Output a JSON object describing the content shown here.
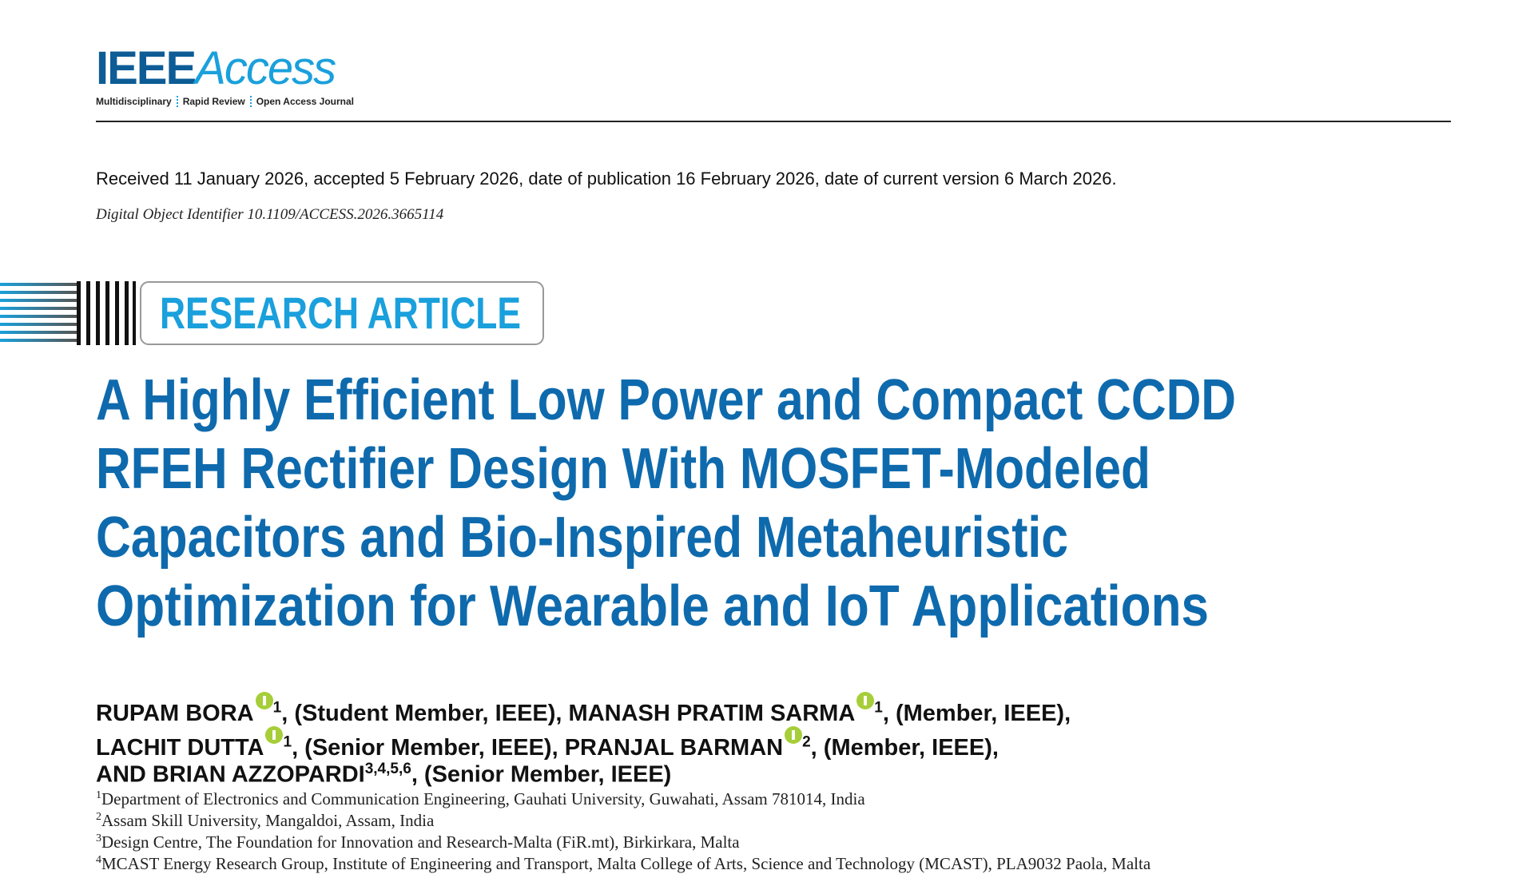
{
  "header": {
    "logo_main": "IEEE",
    "logo_access": "Access",
    "tagline": [
      "Multidisciplinary",
      "Rapid Review",
      "Open Access Journal"
    ]
  },
  "dates": "Received 11 January 2026, accepted 5 February 2026, date of publication 16 February 2026, date of current version 6 March 2026.",
  "doi": "Digital Object Identifier 10.1109/ACCESS.2026.3665114",
  "label": "RESEARCH ARTICLE",
  "title": [
    "A Highly Efficient Low Power and Compact CCDD",
    "RFEH Rectifier Design With MOSFET-Modeled",
    "Capacitors and Bio-Inspired Metaheuristic",
    "Optimization for Wearable and IoT Applications"
  ],
  "authors": [
    [
      {
        "name": "RUPAM BORA",
        "orcid": true,
        "aff": "1",
        "role": ", (Student Member, IEEE),"
      },
      {
        "name": "MANASH PRATIM SARMA",
        "orcid": true,
        "aff": "1",
        "role": ", (Member, IEEE),"
      }
    ],
    [
      {
        "name": "LACHIT DUTTA",
        "orcid": true,
        "aff": "1",
        "role": ", (Senior Member, IEEE),"
      },
      {
        "name": "PRANJAL BARMAN",
        "orcid": true,
        "aff": "2",
        "role": ", (Member, IEEE),"
      }
    ],
    [
      {
        "name": "AND BRIAN AZZOPARDI",
        "orcid": false,
        "aff": "3,4,5,6",
        "role": ", (Senior Member, IEEE)"
      }
    ]
  ],
  "affiliations": [
    {
      "num": "1",
      "text": "Department of Electronics and Communication Engineering, Gauhati University, Guwahati, Assam 781014, India"
    },
    {
      "num": "2",
      "text": "Assam Skill University, Mangaldoi, Assam, India"
    },
    {
      "num": "3",
      "text": "Design Centre, The Foundation for Innovation and Research-Malta (FiR.mt), Birkirkara, Malta"
    },
    {
      "num": "4",
      "text": "MCAST Energy Research Group, Institute of Engineering and Transport, Malta College of Arts, Science and Technology (MCAST), PLA9032 Paola, Malta"
    }
  ]
}
